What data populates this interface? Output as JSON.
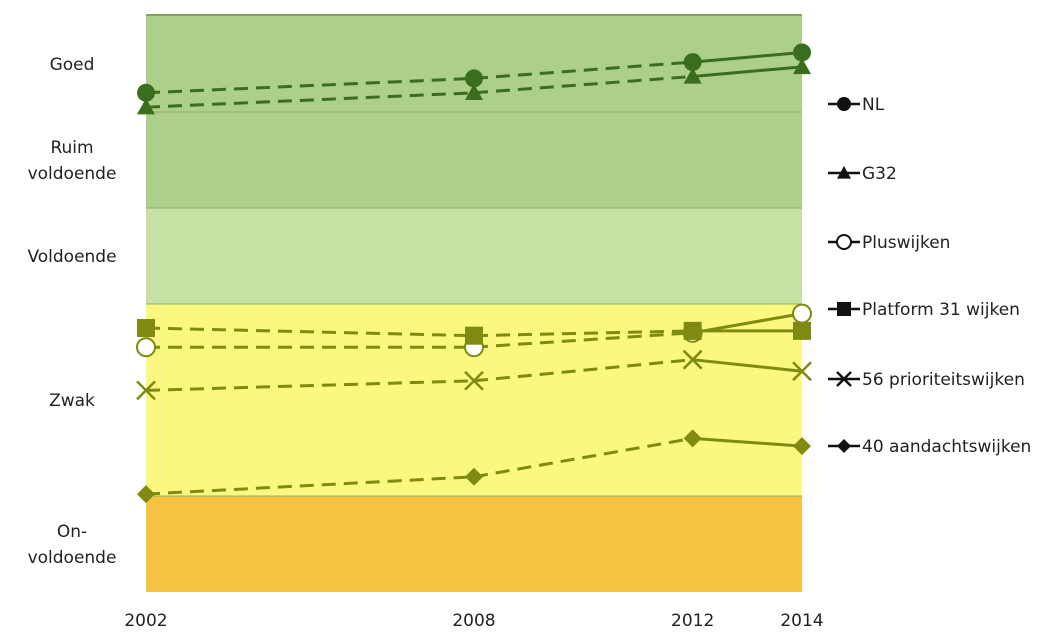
{
  "chart_data": {
    "type": "line",
    "title": "",
    "xlabel": "",
    "ylabel": "",
    "x": [
      2002,
      2008,
      2012,
      2014
    ],
    "ylim": [
      0,
      6
    ],
    "bands": [
      {
        "label": "On-\nvoldoende",
        "from": 0,
        "to": 1,
        "color": "#f5c242"
      },
      {
        "label": "Zwak",
        "from": 1,
        "to": 3,
        "color": "#fbf882"
      },
      {
        "label": "Voldoende",
        "from": 3,
        "to": 4,
        "color": "#c7e0a3"
      },
      {
        "label": "Ruim\nvoldoende",
        "from": 4,
        "to": 5,
        "color": "#acd08a"
      },
      {
        "label": "Goed",
        "from": 5,
        "to": 6,
        "color": "#acd08a"
      }
    ],
    "dashed_until_x": 2012,
    "series": [
      {
        "name": "NL",
        "marker": "circle",
        "color": "#3b6d1e",
        "values": [
          5.2,
          5.35,
          5.52,
          5.62
        ]
      },
      {
        "name": "G32",
        "marker": "triangle",
        "color": "#3b6d1e",
        "values": [
          5.05,
          5.2,
          5.37,
          5.47
        ]
      },
      {
        "name": "Pluswijken",
        "marker": "open-circle",
        "color": "#7f8a10",
        "values": [
          2.55,
          2.55,
          2.7,
          2.9
        ]
      },
      {
        "name": "Platform 31 wijken",
        "marker": "square",
        "color": "#7f8a10",
        "values": [
          2.75,
          2.67,
          2.72,
          2.72
        ]
      },
      {
        "name": "56 prioriteitswijken",
        "marker": "x",
        "color": "#7f8a10",
        "values": [
          2.1,
          2.2,
          2.42,
          2.3
        ]
      },
      {
        "name": "40 aandachtswijken",
        "marker": "diamond",
        "color": "#7f8a10",
        "values": [
          1.02,
          1.2,
          1.6,
          1.52
        ]
      }
    ],
    "legend_position": "right",
    "grid": false
  }
}
